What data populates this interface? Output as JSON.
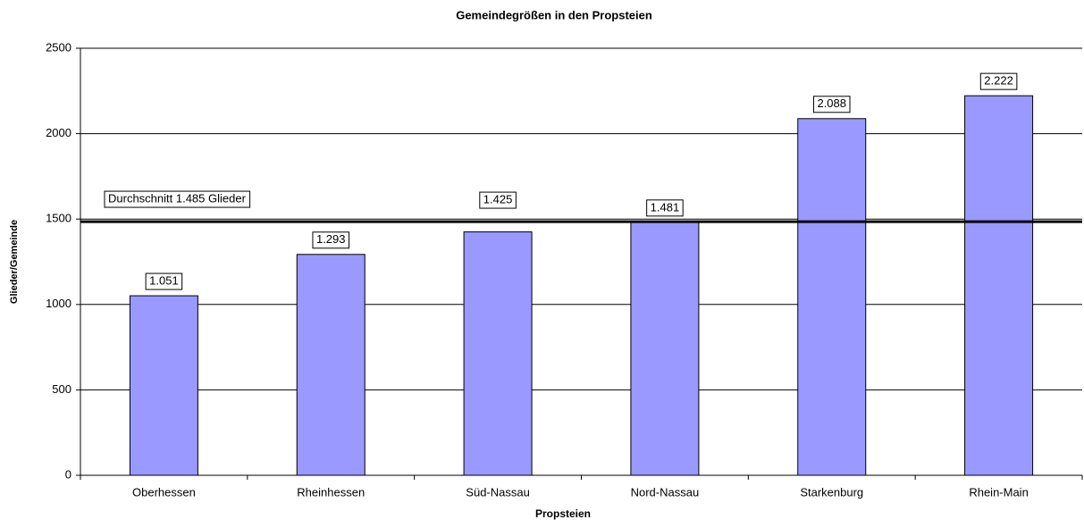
{
  "chart_data": {
    "type": "bar",
    "title": "Gemeindegrößen in den Propsteien",
    "x_label": "Propsteien",
    "y_label": "Glieder/Gemeinde",
    "categories": [
      "Oberhessen",
      "Rheinhessen",
      "Süd-Nassau",
      "Nord-Nassau",
      "Starkenburg",
      "Rhein-Main"
    ],
    "values": [
      1051,
      1293,
      1425,
      1481,
      2088,
      2222
    ],
    "value_labels": [
      "1.051",
      "1.293",
      "1.425",
      "1.481",
      "2.088",
      "2.222"
    ],
    "color": "#9999ff",
    "ylim": [
      0,
      2500
    ],
    "yticks": [
      0,
      500,
      1000,
      1500,
      2000,
      2500
    ],
    "grid": true,
    "average": 1485,
    "average_label": "Durchschnitt 1.485 Glieder"
  }
}
